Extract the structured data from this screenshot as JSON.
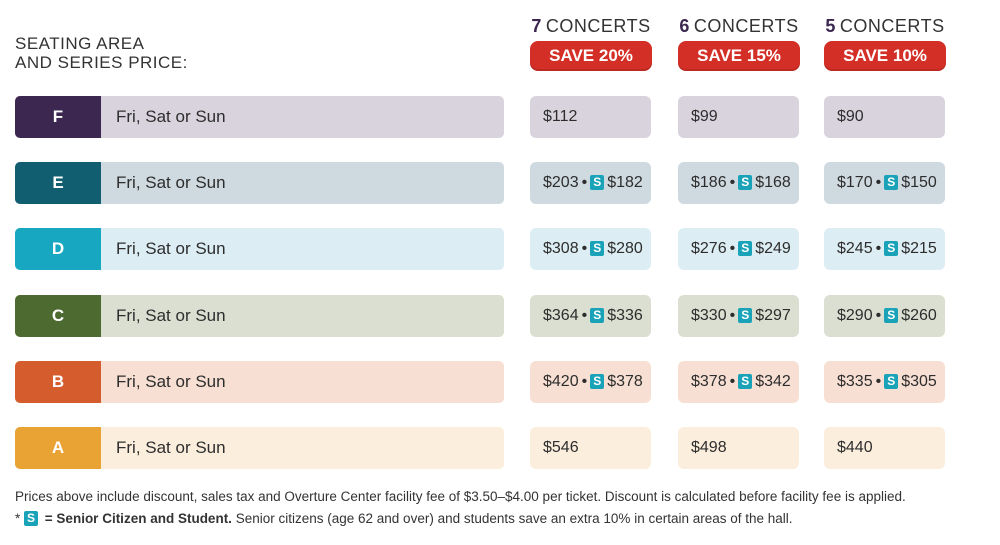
{
  "area_title": "SEATING AREA\nAND SERIES PRICE:",
  "columns": [
    {
      "count": "7",
      "unit": "CONCERTS",
      "save": "SAVE 20%"
    },
    {
      "count": "6",
      "unit": "CONCERTS",
      "save": "SAVE 15%"
    },
    {
      "count": "5",
      "unit": "CONCERTS",
      "save": "SAVE 10%"
    }
  ],
  "dot": "•",
  "senior_badge": "S",
  "colors": {
    "save_red": "#d42f27",
    "senior_badge": "#1aa3b8"
  },
  "tiers": [
    {
      "letter": "F",
      "days": "Fri, Sat or Sun",
      "color": "#3b2750",
      "bg": "#d8d3dc",
      "prices": [
        {
          "regular": "$112"
        },
        {
          "regular": "$99"
        },
        {
          "regular": "$90"
        }
      ]
    },
    {
      "letter": "E",
      "days": "Fri, Sat or Sun",
      "color": "#115e70",
      "bg": "#cfd9e0",
      "prices": [
        {
          "regular": "$203",
          "senior": "$182"
        },
        {
          "regular": "$186",
          "senior": "$168"
        },
        {
          "regular": "$170",
          "senior": "$150"
        }
      ]
    },
    {
      "letter": "D",
      "days": "Fri, Sat or Sun",
      "color": "#17a7c0",
      "bg": "#dcedf3",
      "prices": [
        {
          "regular": "$308",
          "senior": "$280"
        },
        {
          "regular": "$276",
          "senior": "$249"
        },
        {
          "regular": "$245",
          "senior": "$215"
        }
      ]
    },
    {
      "letter": "C",
      "days": "Fri, Sat or Sun",
      "color": "#4d6a30",
      "bg": "#dadfd1",
      "prices": [
        {
          "regular": "$364",
          "senior": "$336"
        },
        {
          "regular": "$330",
          "senior": "$297"
        },
        {
          "regular": "$290",
          "senior": "$260"
        }
      ]
    },
    {
      "letter": "B",
      "days": "Fri, Sat or Sun",
      "color": "#d55c2d",
      "bg": "#f7e0d3",
      "prices": [
        {
          "regular": "$420",
          "senior": "$378"
        },
        {
          "regular": "$378",
          "senior": "$342"
        },
        {
          "regular": "$335",
          "senior": "$305"
        }
      ]
    },
    {
      "letter": "A",
      "days": "Fri, Sat or Sun",
      "color": "#e9a234",
      "bg": "#fbeedd",
      "prices": [
        {
          "regular": "$546"
        },
        {
          "regular": "$498"
        },
        {
          "regular": "$440"
        }
      ]
    }
  ],
  "footnote": {
    "line1": "Prices above include discount, sales tax and Overture Center facility fee of $3.50–$4.00 per ticket. Discount is calculated before facility fee is applied.",
    "star": "*",
    "badge": "S",
    "bold": "= Senior Citizen and Student.",
    "rest": " Senior citizens (age 62 and over) and students save an extra 10% in certain areas of the hall."
  }
}
